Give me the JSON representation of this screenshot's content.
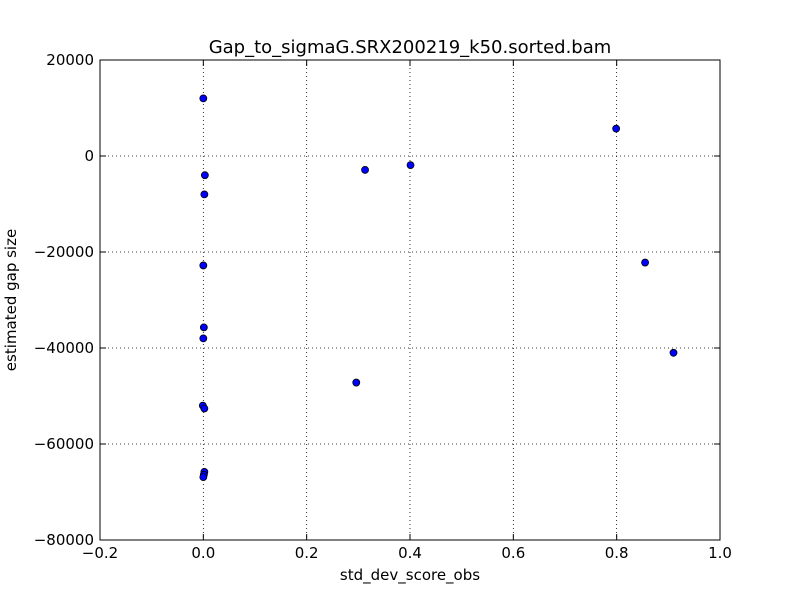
{
  "chart_data": {
    "type": "scatter",
    "title": "Gap_to_sigmaG.SRX200219_k50.sorted.bam",
    "xlabel": "std_dev_score_obs",
    "ylabel": "estimated gap size",
    "xlim": [
      -0.2,
      1.0
    ],
    "ylim": [
      -80000,
      20000
    ],
    "xticks": [
      -0.2,
      0.0,
      0.2,
      0.4,
      0.6,
      0.8,
      1.0
    ],
    "xtick_labels": [
      "−0.2",
      "0.0",
      "0.2",
      "0.4",
      "0.6",
      "0.8",
      "1.0"
    ],
    "yticks": [
      -80000,
      -60000,
      -40000,
      -20000,
      0,
      20000
    ],
    "ytick_labels": [
      "−80000",
      "−60000",
      "−40000",
      "−20000",
      "0",
      "20000"
    ],
    "grid": true,
    "marker_color": "#0000ff",
    "points": [
      {
        "x": 0.0,
        "y": 12000
      },
      {
        "x": 0.003,
        "y": -4000
      },
      {
        "x": 0.002,
        "y": -8000
      },
      {
        "x": 0.0,
        "y": -22800
      },
      {
        "x": 0.001,
        "y": -35700
      },
      {
        "x": 0.0,
        "y": -38000
      },
      {
        "x": -0.001,
        "y": -52000
      },
      {
        "x": 0.002,
        "y": -52600
      },
      {
        "x": 0.002,
        "y": -65800
      },
      {
        "x": 0.001,
        "y": -66400
      },
      {
        "x": 0.0,
        "y": -66900
      },
      {
        "x": 0.296,
        "y": -47200
      },
      {
        "x": 0.313,
        "y": -2900
      },
      {
        "x": 0.401,
        "y": -1900
      },
      {
        "x": 0.799,
        "y": 5700
      },
      {
        "x": 0.855,
        "y": -22200
      },
      {
        "x": 0.91,
        "y": -41000
      }
    ]
  }
}
